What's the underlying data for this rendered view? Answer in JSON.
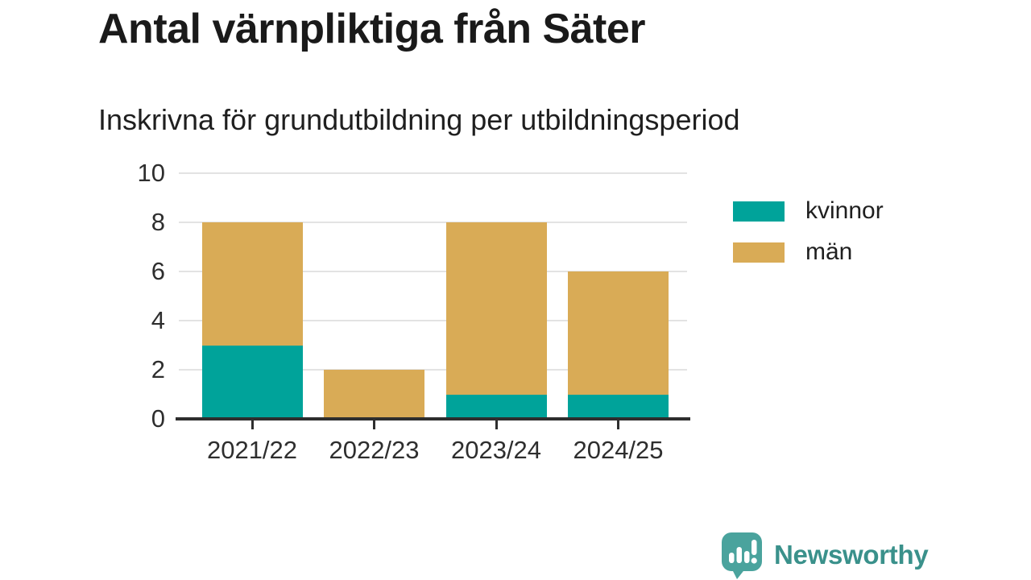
{
  "header": {
    "title": "Antal värnpliktiga från Säter",
    "subtitle": "Inskrivna för grundutbildning per utbildningsperiod"
  },
  "chart_data": {
    "type": "bar",
    "stacked": true,
    "title": "Antal värnpliktiga från Säter",
    "subtitle": "Inskrivna för grundutbildning per utbildningsperiod",
    "categories": [
      "2021/22",
      "2022/23",
      "2023/24",
      "2024/25"
    ],
    "series": [
      {
        "name": "kvinnor",
        "color": "#00a39a",
        "values": [
          3,
          0,
          1,
          1
        ]
      },
      {
        "name": "män",
        "color": "#d9ab56",
        "values": [
          5,
          2,
          7,
          5
        ]
      }
    ],
    "totals": [
      8,
      2,
      8,
      6
    ],
    "xlabel": "",
    "ylabel": "",
    "ylim": [
      0,
      10
    ],
    "yticks": [
      0,
      2,
      4,
      6,
      8,
      10
    ],
    "grid": true,
    "legend_position": "right"
  },
  "footer": {
    "brand": "Newsworthy",
    "brand_color": "#3a918b",
    "icon_color": "#4aa39d"
  },
  "colors": {
    "background": "#ffffff",
    "grid": "#e3e3e3",
    "axis": "#2e2e2e",
    "text": "#1f1f1f"
  }
}
